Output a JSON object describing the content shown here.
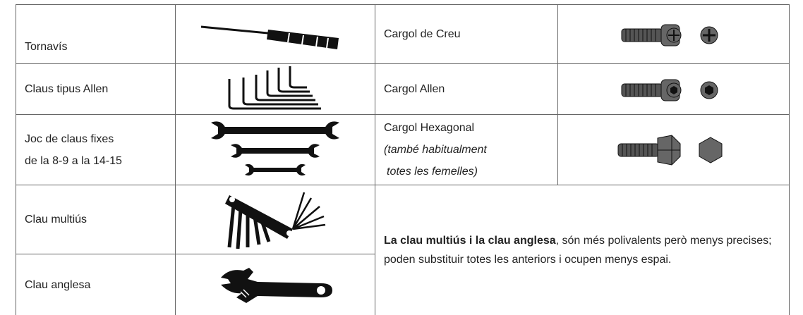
{
  "table": {
    "rows": [
      {
        "tool_lines": [
          "Tornavís"
        ],
        "part_lines": [
          "Cargol de Creu"
        ]
      },
      {
        "tool_lines": [
          "Claus tipus Allen"
        ],
        "part_lines": [
          "Cargol Allen"
        ]
      },
      {
        "tool_lines": [
          "Joc de claus fixes",
          "de la 8-9 a la 14-15"
        ],
        "part_lines": [
          "Cargol Hexagonal"
        ],
        "note_lines": [
          "(també habitualment",
          "totes les femelles)"
        ]
      },
      {
        "tool_lines": [
          "Clau multiús"
        ]
      },
      {
        "tool_lines": [
          "Clau anglesa"
        ]
      }
    ],
    "summary": {
      "bold": "La clau multiús i la clau anglesa",
      "text": ", són més polivalents però menys precises; poden substituir totes les anteriors i ocupen menys espai."
    }
  }
}
